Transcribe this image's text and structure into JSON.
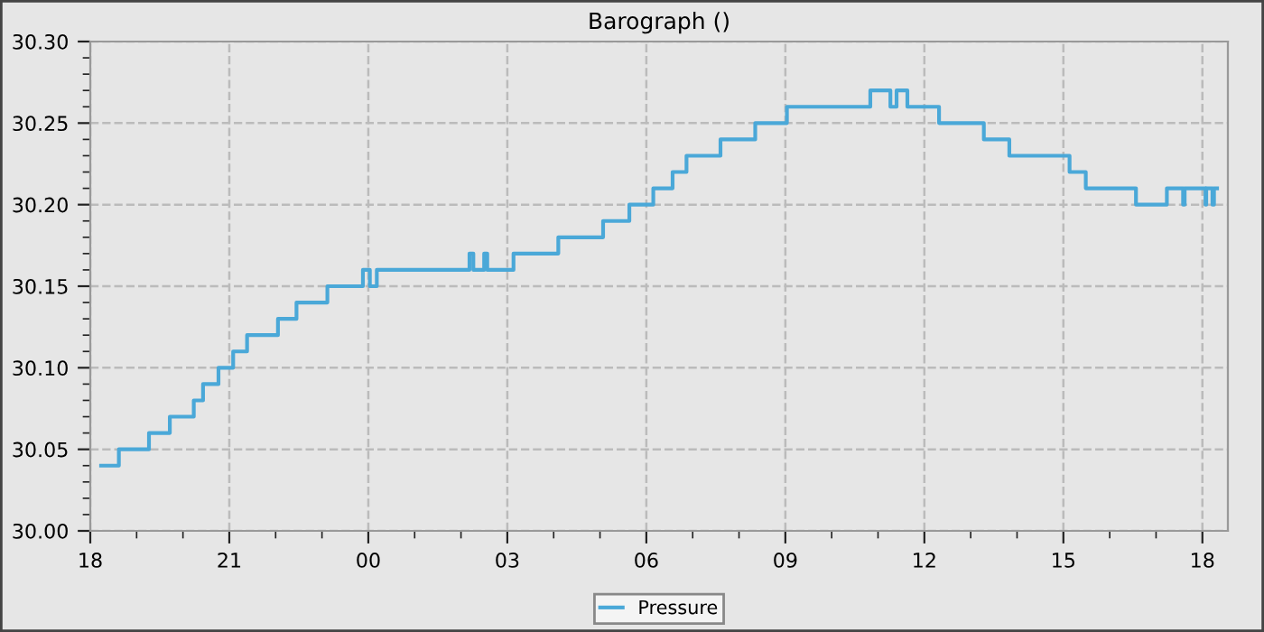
{
  "chart_data": {
    "type": "step",
    "title": "Barograph ()",
    "legend": "bottom",
    "grid": true,
    "line_style": "dashed",
    "xlim": [
      "2000-01-01T18:00",
      "2000-01-02T18:33"
    ],
    "ylim": [
      30.0,
      30.3
    ],
    "xticks": [
      {
        "value": "2000-01-01T18:00",
        "label": "18"
      },
      {
        "value": "2000-01-01T19:00",
        "label": null
      },
      {
        "value": "2000-01-01T20:00",
        "label": null
      },
      {
        "value": "2000-01-01T21:00",
        "label": "21"
      },
      {
        "value": "2000-01-01T22:00",
        "label": null
      },
      {
        "value": "2000-01-01T23:00",
        "label": null
      },
      {
        "value": "2000-01-02T00:00",
        "label": "00"
      },
      {
        "value": "2000-01-02T01:00",
        "label": null
      },
      {
        "value": "2000-01-02T02:00",
        "label": null
      },
      {
        "value": "2000-01-02T03:00",
        "label": "03"
      },
      {
        "value": "2000-01-02T04:00",
        "label": null
      },
      {
        "value": "2000-01-02T05:00",
        "label": null
      },
      {
        "value": "2000-01-02T06:00",
        "label": "06"
      },
      {
        "value": "2000-01-02T07:00",
        "label": null
      },
      {
        "value": "2000-01-02T08:00",
        "label": null
      },
      {
        "value": "2000-01-02T09:00",
        "label": "09"
      },
      {
        "value": "2000-01-02T10:00",
        "label": null
      },
      {
        "value": "2000-01-02T11:00",
        "label": null
      },
      {
        "value": "2000-01-02T12:00",
        "label": "12"
      },
      {
        "value": "2000-01-02T13:00",
        "label": null
      },
      {
        "value": "2000-01-02T14:00",
        "label": null
      },
      {
        "value": "2000-01-02T15:00",
        "label": "15"
      },
      {
        "value": "2000-01-02T16:00",
        "label": null
      },
      {
        "value": "2000-01-02T17:00",
        "label": null
      },
      {
        "value": "2000-01-02T18:00",
        "label": "18"
      }
    ],
    "yticks": [
      {
        "value": 30.0,
        "label": "30.00"
      },
      {
        "value": 30.01,
        "label": null
      },
      {
        "value": 30.02,
        "label": null
      },
      {
        "value": 30.03,
        "label": null
      },
      {
        "value": 30.04,
        "label": null
      },
      30.05,
      {
        "value": 30.06,
        "label": null
      },
      {
        "value": 30.07,
        "label": null
      },
      {
        "value": 30.08,
        "label": null
      },
      {
        "value": 30.09,
        "label": null
      },
      {
        "value": 30.1,
        "label": "30.10"
      },
      {
        "value": 30.11,
        "label": null
      },
      {
        "value": 30.12,
        "label": null
      },
      {
        "value": 30.13,
        "label": null
      },
      {
        "value": 30.14,
        "label": null
      },
      30.15,
      {
        "value": 30.16,
        "label": null
      },
      {
        "value": 30.17,
        "label": null
      },
      {
        "value": 30.18,
        "label": null
      },
      {
        "value": 30.19,
        "label": null
      },
      {
        "value": 30.2,
        "label": "30.20"
      },
      {
        "value": 30.21,
        "label": null
      },
      {
        "value": 30.22,
        "label": null
      },
      {
        "value": 30.23,
        "label": null
      },
      {
        "value": 30.24,
        "label": null
      },
      30.25,
      {
        "value": 30.26,
        "label": null
      },
      {
        "value": 30.27,
        "label": null
      },
      {
        "value": 30.28,
        "label": null
      },
      {
        "value": 30.29,
        "label": null
      },
      {
        "value": 30.3,
        "label": "30.30"
      }
    ],
    "series": [
      {
        "name": "Pressure",
        "color": "#4aa8d8",
        "line_style": "solid",
        "x": [
          "2000-01-01T18:14",
          "2000-01-01T18:37",
          "2000-01-01T19:16",
          "2000-01-01T19:43",
          "2000-01-01T20:14",
          "2000-01-01T20:26",
          "2000-01-01T20:46",
          "2000-01-01T21:05",
          "2000-01-01T21:23",
          "2000-01-01T22:03",
          "2000-01-01T22:27",
          "2000-01-01T23:07",
          "2000-01-01T23:53",
          "2000-01-02T00:02",
          "2000-01-02T00:11",
          "2000-01-02T02:11",
          "2000-01-02T02:16",
          "2000-01-02T02:30",
          "2000-01-02T02:34",
          "2000-01-02T03:08",
          "2000-01-02T04:06",
          "2000-01-02T05:04",
          "2000-01-02T05:38",
          "2000-01-02T06:09",
          "2000-01-02T06:34",
          "2000-01-02T06:52",
          "2000-01-02T07:36",
          "2000-01-02T08:21",
          "2000-01-02T09:02",
          "2000-01-02T10:50",
          "2000-01-02T11:16",
          "2000-01-02T11:24",
          "2000-01-02T11:38",
          "2000-01-02T12:19",
          "2000-01-02T13:17",
          "2000-01-02T13:50",
          "2000-01-02T15:08",
          "2000-01-02T15:29",
          "2000-01-02T16:34",
          "2000-01-02T17:14",
          "2000-01-02T17:35",
          "2000-01-02T17:37",
          "2000-01-02T18:04",
          "2000-01-02T18:05",
          "2000-01-02T18:13",
          "2000-01-02T18:15",
          "2000-01-02T18:19"
        ],
        "values": [
          30.04,
          30.05,
          30.06,
          30.07,
          30.08,
          30.09,
          30.1,
          30.11,
          30.12,
          30.13,
          30.14,
          30.15,
          30.16,
          30.15,
          30.16,
          30.17,
          30.16,
          30.17,
          30.16,
          30.17,
          30.18,
          30.19,
          30.2,
          30.21,
          30.22,
          30.23,
          30.24,
          30.25,
          30.26,
          30.27,
          30.26,
          30.27,
          30.26,
          30.25,
          30.24,
          30.23,
          30.22,
          30.21,
          30.2,
          30.21,
          30.2,
          30.21,
          30.2,
          30.21,
          30.2,
          30.21,
          30.21
        ]
      }
    ]
  }
}
